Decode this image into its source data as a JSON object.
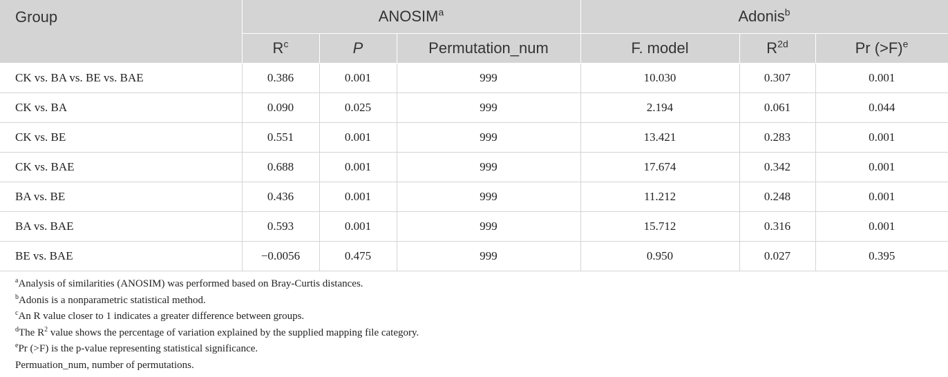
{
  "header": {
    "group": "Group",
    "anosim": "ANOSIM",
    "anosim_sup": "a",
    "adonis": "Adonis",
    "adonis_sup": "b",
    "r": "R",
    "r_sup": "c",
    "p": "P",
    "perm": "Permutation_num",
    "fmodel": "F. model",
    "r2": "R",
    "r2_sup": "2d",
    "pr": "Pr (>F)",
    "pr_sup": "e"
  },
  "rows": [
    {
      "group": "CK vs. BA vs. BE vs. BAE",
      "r": "0.386",
      "p": "0.001",
      "perm": "999",
      "f": "10.030",
      "r2": "0.307",
      "pr": "0.001"
    },
    {
      "group": "CK vs. BA",
      "r": "0.090",
      "p": "0.025",
      "perm": "999",
      "f": "2.194",
      "r2": "0.061",
      "pr": "0.044"
    },
    {
      "group": "CK vs. BE",
      "r": "0.551",
      "p": "0.001",
      "perm": "999",
      "f": "13.421",
      "r2": "0.283",
      "pr": "0.001"
    },
    {
      "group": "CK vs. BAE",
      "r": "0.688",
      "p": "0.001",
      "perm": "999",
      "f": "17.674",
      "r2": "0.342",
      "pr": "0.001"
    },
    {
      "group": "BA vs. BE",
      "r": "0.436",
      "p": "0.001",
      "perm": "999",
      "f": "11.212",
      "r2": "0.248",
      "pr": "0.001"
    },
    {
      "group": "BA vs. BAE",
      "r": "0.593",
      "p": "0.001",
      "perm": "999",
      "f": "15.712",
      "r2": "0.316",
      "pr": "0.001"
    },
    {
      "group": "BE vs. BAE",
      "r": "−0.0056",
      "p": "0.475",
      "perm": "999",
      "f": "0.950",
      "r2": "0.027",
      "pr": "0.395"
    }
  ],
  "notes": {
    "a_mark": "a",
    "a_text": "Analysis of similarities (ANOSIM) was performed based on Bray-Curtis distances.",
    "b_mark": "b",
    "b_text": "Adonis is a nonparametric statistical method.",
    "c_mark": "c",
    "c_text": "An R value closer to 1 indicates a greater difference between groups.",
    "d_mark": "d",
    "d_pre": "The R",
    "d_sup": "2",
    "d_text": " value shows the percentage of variation explained by the supplied mapping file category.",
    "e_mark": "e",
    "e_text": "Pr (>F) is the p-value representing statistical significance.",
    "perm_text": "Permuation_num, number of permutations."
  }
}
